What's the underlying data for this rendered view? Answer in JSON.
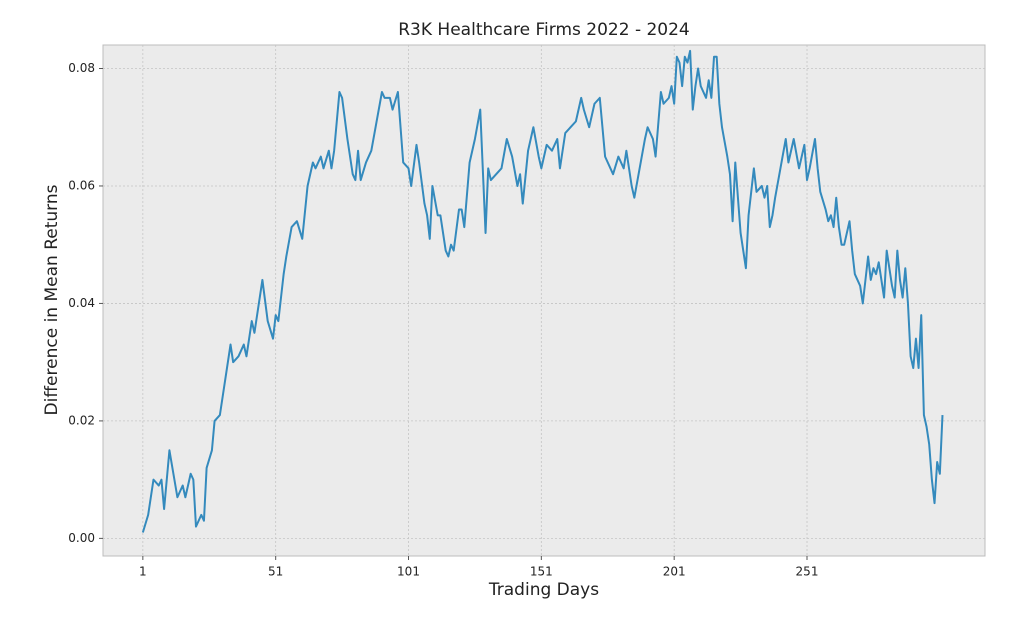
{
  "chart_data": {
    "type": "line",
    "title": "R3K Healthcare Firms 2022 - 2024",
    "x_label": "Trading Days",
    "y_label": "Difference in Mean Returns",
    "color": "#348abd",
    "grid": true,
    "xlim": [
      -14,
      318
    ],
    "ylim": [
      -0.003,
      0.084
    ],
    "xticks": [
      1,
      51,
      101,
      151,
      201,
      251
    ],
    "yticks": [
      {
        "value": 0,
        "label": "0.00"
      },
      0.02,
      0.04,
      0.06,
      0.08
    ],
    "x": [
      1,
      3,
      5,
      7,
      8,
      9,
      11,
      14,
      16,
      17,
      19,
      20,
      21,
      23,
      24,
      25,
      27,
      28,
      30,
      32,
      34,
      35,
      37,
      39,
      40,
      42,
      43,
      46,
      48,
      50,
      51,
      52,
      54,
      55,
      57,
      59,
      61,
      63,
      65,
      66,
      68,
      69,
      71,
      72,
      73,
      75,
      76,
      78,
      80,
      81,
      82,
      83,
      85,
      87,
      89,
      91,
      92,
      94,
      95,
      97,
      99,
      101,
      102,
      104,
      105,
      107,
      108,
      109,
      110,
      112,
      113,
      115,
      116,
      117,
      118,
      120,
      121,
      122,
      124,
      126,
      128,
      130,
      131,
      132,
      134,
      136,
      138,
      140,
      142,
      143,
      144,
      146,
      148,
      150,
      151,
      153,
      155,
      157,
      158,
      160,
      162,
      164,
      166,
      167,
      169,
      171,
      173,
      175,
      178,
      180,
      182,
      183,
      185,
      186,
      188,
      190,
      191,
      193,
      194,
      196,
      197,
      199,
      200,
      201,
      202,
      203,
      204,
      205,
      206,
      207,
      208,
      209,
      210,
      211,
      213,
      214,
      215,
      216,
      217,
      218,
      219,
      221,
      222,
      223,
      224,
      225,
      226,
      228,
      229,
      231,
      232,
      234,
      235,
      236,
      237,
      238,
      239,
      241,
      243,
      244,
      245,
      246,
      248,
      250,
      251,
      252,
      254,
      255,
      256,
      258,
      259,
      260,
      261,
      262,
      263,
      264,
      265,
      267,
      268,
      269,
      270,
      271,
      272,
      274,
      275,
      276,
      277,
      278,
      279,
      280,
      281,
      282,
      283,
      284,
      285,
      286,
      287,
      288,
      289,
      290,
      291,
      292,
      293,
      294,
      295,
      296,
      297,
      298,
      299,
      300,
      301,
      302
    ],
    "values": [
      0.001,
      0.004,
      0.01,
      0.009,
      0.01,
      0.005,
      0.015,
      0.007,
      0.009,
      0.007,
      0.011,
      0.01,
      0.002,
      0.004,
      0.003,
      0.012,
      0.015,
      0.02,
      0.021,
      0.027,
      0.033,
      0.03,
      0.031,
      0.033,
      0.031,
      0.037,
      0.035,
      0.044,
      0.037,
      0.034,
      0.038,
      0.037,
      0.045,
      0.048,
      0.053,
      0.054,
      0.051,
      0.06,
      0.064,
      0.063,
      0.065,
      0.063,
      0.066,
      0.063,
      0.066,
      0.076,
      0.075,
      0.068,
      0.062,
      0.061,
      0.066,
      0.061,
      0.064,
      0.066,
      0.071,
      0.076,
      0.075,
      0.075,
      0.073,
      0.076,
      0.064,
      0.063,
      0.06,
      0.067,
      0.064,
      0.057,
      0.055,
      0.051,
      0.06,
      0.055,
      0.055,
      0.049,
      0.048,
      0.05,
      0.049,
      0.056,
      0.056,
      0.053,
      0.064,
      0.068,
      0.073,
      0.052,
      0.063,
      0.061,
      0.062,
      0.063,
      0.068,
      0.065,
      0.06,
      0.062,
      0.057,
      0.066,
      0.07,
      0.065,
      0.063,
      0.067,
      0.066,
      0.068,
      0.063,
      0.069,
      0.07,
      0.071,
      0.075,
      0.073,
      0.07,
      0.074,
      0.075,
      0.065,
      0.062,
      0.065,
      0.063,
      0.066,
      0.06,
      0.058,
      0.063,
      0.068,
      0.07,
      0.068,
      0.065,
      0.076,
      0.074,
      0.075,
      0.077,
      0.074,
      0.082,
      0.081,
      0.077,
      0.082,
      0.081,
      0.083,
      0.073,
      0.077,
      0.08,
      0.077,
      0.075,
      0.078,
      0.075,
      0.082,
      0.082,
      0.074,
      0.07,
      0.065,
      0.062,
      0.054,
      0.064,
      0.058,
      0.052,
      0.046,
      0.055,
      0.063,
      0.059,
      0.06,
      0.058,
      0.06,
      0.053,
      0.055,
      0.058,
      0.063,
      0.068,
      0.064,
      0.066,
      0.068,
      0.063,
      0.067,
      0.061,
      0.063,
      0.068,
      0.063,
      0.059,
      0.056,
      0.054,
      0.055,
      0.053,
      0.058,
      0.053,
      0.05,
      0.05,
      0.054,
      0.049,
      0.045,
      0.044,
      0.043,
      0.04,
      0.048,
      0.044,
      0.046,
      0.045,
      0.047,
      0.044,
      0.041,
      0.049,
      0.046,
      0.043,
      0.041,
      0.049,
      0.044,
      0.041,
      0.046,
      0.04,
      0.031,
      0.029,
      0.034,
      0.029,
      0.038,
      0.021,
      0.019,
      0.016,
      0.01,
      0.006,
      0.013,
      0.011,
      0.021
    ]
  }
}
